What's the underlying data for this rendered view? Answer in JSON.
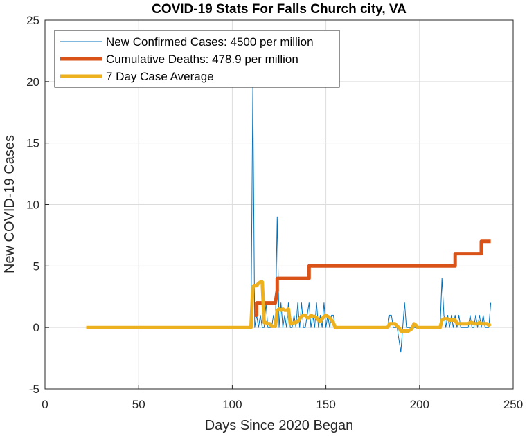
{
  "chart_data": {
    "type": "line",
    "title": "COVID-19 Stats For Falls Church city, VA",
    "xlabel": "Days Since 2020 Began",
    "ylabel": "New COVID-19 Cases",
    "xlim": [
      0,
      250
    ],
    "ylim": [
      -5,
      25
    ],
    "xticks": [
      0,
      50,
      100,
      150,
      200,
      250
    ],
    "yticks": [
      -5,
      0,
      5,
      10,
      15,
      20,
      25
    ],
    "grid": true,
    "legend_position": "top-left",
    "series": [
      {
        "name": "New Confirmed Cases: 4500 per million",
        "color": "#0072BD",
        "style": "thin",
        "x": [
          22,
          109,
          110,
          111,
          112,
          113,
          114,
          115,
          116,
          117,
          118,
          119,
          120,
          121,
          122,
          123,
          124,
          125,
          126,
          127,
          128,
          129,
          130,
          131,
          132,
          133,
          134,
          135,
          136,
          137,
          138,
          139,
          140,
          141,
          142,
          143,
          144,
          145,
          146,
          147,
          148,
          149,
          150,
          151,
          152,
          153,
          154,
          155,
          183,
          184,
          185,
          186,
          187,
          188,
          189,
          190,
          191,
          192,
          193,
          194,
          195,
          196,
          197,
          198,
          199,
          200,
          211,
          212,
          213,
          214,
          215,
          216,
          217,
          218,
          219,
          220,
          221,
          222,
          223,
          224,
          225,
          226,
          227,
          228,
          229,
          230,
          231,
          232,
          233,
          234,
          235,
          236,
          237,
          238
        ],
        "y": [
          0,
          0,
          0,
          19.5,
          0,
          1,
          0,
          1,
          0,
          0,
          2,
          0,
          0,
          0,
          1,
          0,
          9,
          0,
          2,
          0,
          1,
          0,
          2,
          0,
          0,
          1,
          0,
          2,
          0,
          2,
          0,
          0,
          1,
          2,
          0,
          1,
          0,
          2,
          0,
          1,
          0,
          2,
          0,
          1,
          0,
          1,
          1,
          0,
          0,
          1,
          1,
          0,
          0,
          0,
          -1,
          -2,
          0,
          2,
          0,
          0,
          0,
          0,
          0,
          0,
          0,
          0,
          0,
          4,
          1,
          0,
          1,
          0,
          1,
          0,
          1,
          0,
          1,
          0,
          0,
          0,
          0,
          0,
          1,
          0,
          0,
          1,
          0,
          1,
          0,
          1,
          0,
          0,
          0,
          2
        ]
      },
      {
        "name": "Cumulative Deaths: 478.9 per million",
        "color": "#D95319",
        "style": "thick",
        "x": [
          112,
          113,
          113,
          123,
          124,
          124,
          140,
          141,
          141,
          218,
          219,
          219,
          232,
          233,
          233,
          238
        ],
        "y": [
          1,
          1,
          2,
          2,
          3,
          4,
          4,
          4,
          5,
          5,
          5,
          6,
          6,
          6,
          7,
          7
        ]
      },
      {
        "name": "7 Day Case Average",
        "color": "#EDB120",
        "style": "thick",
        "x": [
          22,
          109,
          110,
          111,
          112,
          113,
          114,
          115,
          116,
          117,
          118,
          119,
          120,
          121,
          122,
          123,
          124,
          125,
          126,
          127,
          128,
          129,
          130,
          131,
          132,
          133,
          134,
          135,
          136,
          137,
          138,
          139,
          140,
          141,
          142,
          143,
          144,
          145,
          146,
          147,
          148,
          149,
          150,
          151,
          152,
          153,
          154,
          155,
          183,
          184,
          185,
          186,
          187,
          188,
          189,
          190,
          191,
          192,
          193,
          194,
          195,
          196,
          197,
          198,
          199,
          200,
          211,
          212,
          213,
          214,
          215,
          216,
          217,
          218,
          219,
          220,
          221,
          222,
          223,
          224,
          225,
          226,
          227,
          228,
          229,
          230,
          231,
          232,
          233,
          234,
          235,
          236,
          237,
          238
        ],
        "y": [
          0,
          0,
          0,
          3.3,
          3.4,
          3.4,
          3.6,
          3.7,
          3.7,
          0.4,
          0.4,
          0.3,
          0.3,
          0.1,
          0.1,
          0.1,
          1.4,
          1.5,
          1.4,
          1.5,
          1.4,
          1.4,
          1.5,
          0.3,
          0.3,
          0.4,
          0.4,
          0.5,
          0.7,
          0.9,
          1,
          1,
          0.8,
          0.8,
          1,
          0.9,
          0.9,
          0.8,
          0.6,
          0.5,
          0.7,
          0.9,
          1,
          0.9,
          0.8,
          0.6,
          0.4,
          0,
          0,
          0.3,
          0.3,
          0.3,
          0.3,
          0.1,
          0,
          -0.3,
          -0.3,
          -0.3,
          -0.3,
          -0.3,
          -0.2,
          -0.1,
          0.3,
          0.2,
          0,
          0,
          0,
          0.6,
          0.7,
          0.7,
          0.7,
          0.6,
          0.6,
          0.6,
          0.6,
          0.3,
          0.3,
          0.3,
          0.3,
          0.3,
          0.3,
          0.3,
          0.4,
          0.4,
          0.3,
          0.3,
          0.3,
          0.4,
          0.3,
          0.3,
          0.3,
          0.3,
          0.2,
          0.3
        ]
      }
    ]
  }
}
